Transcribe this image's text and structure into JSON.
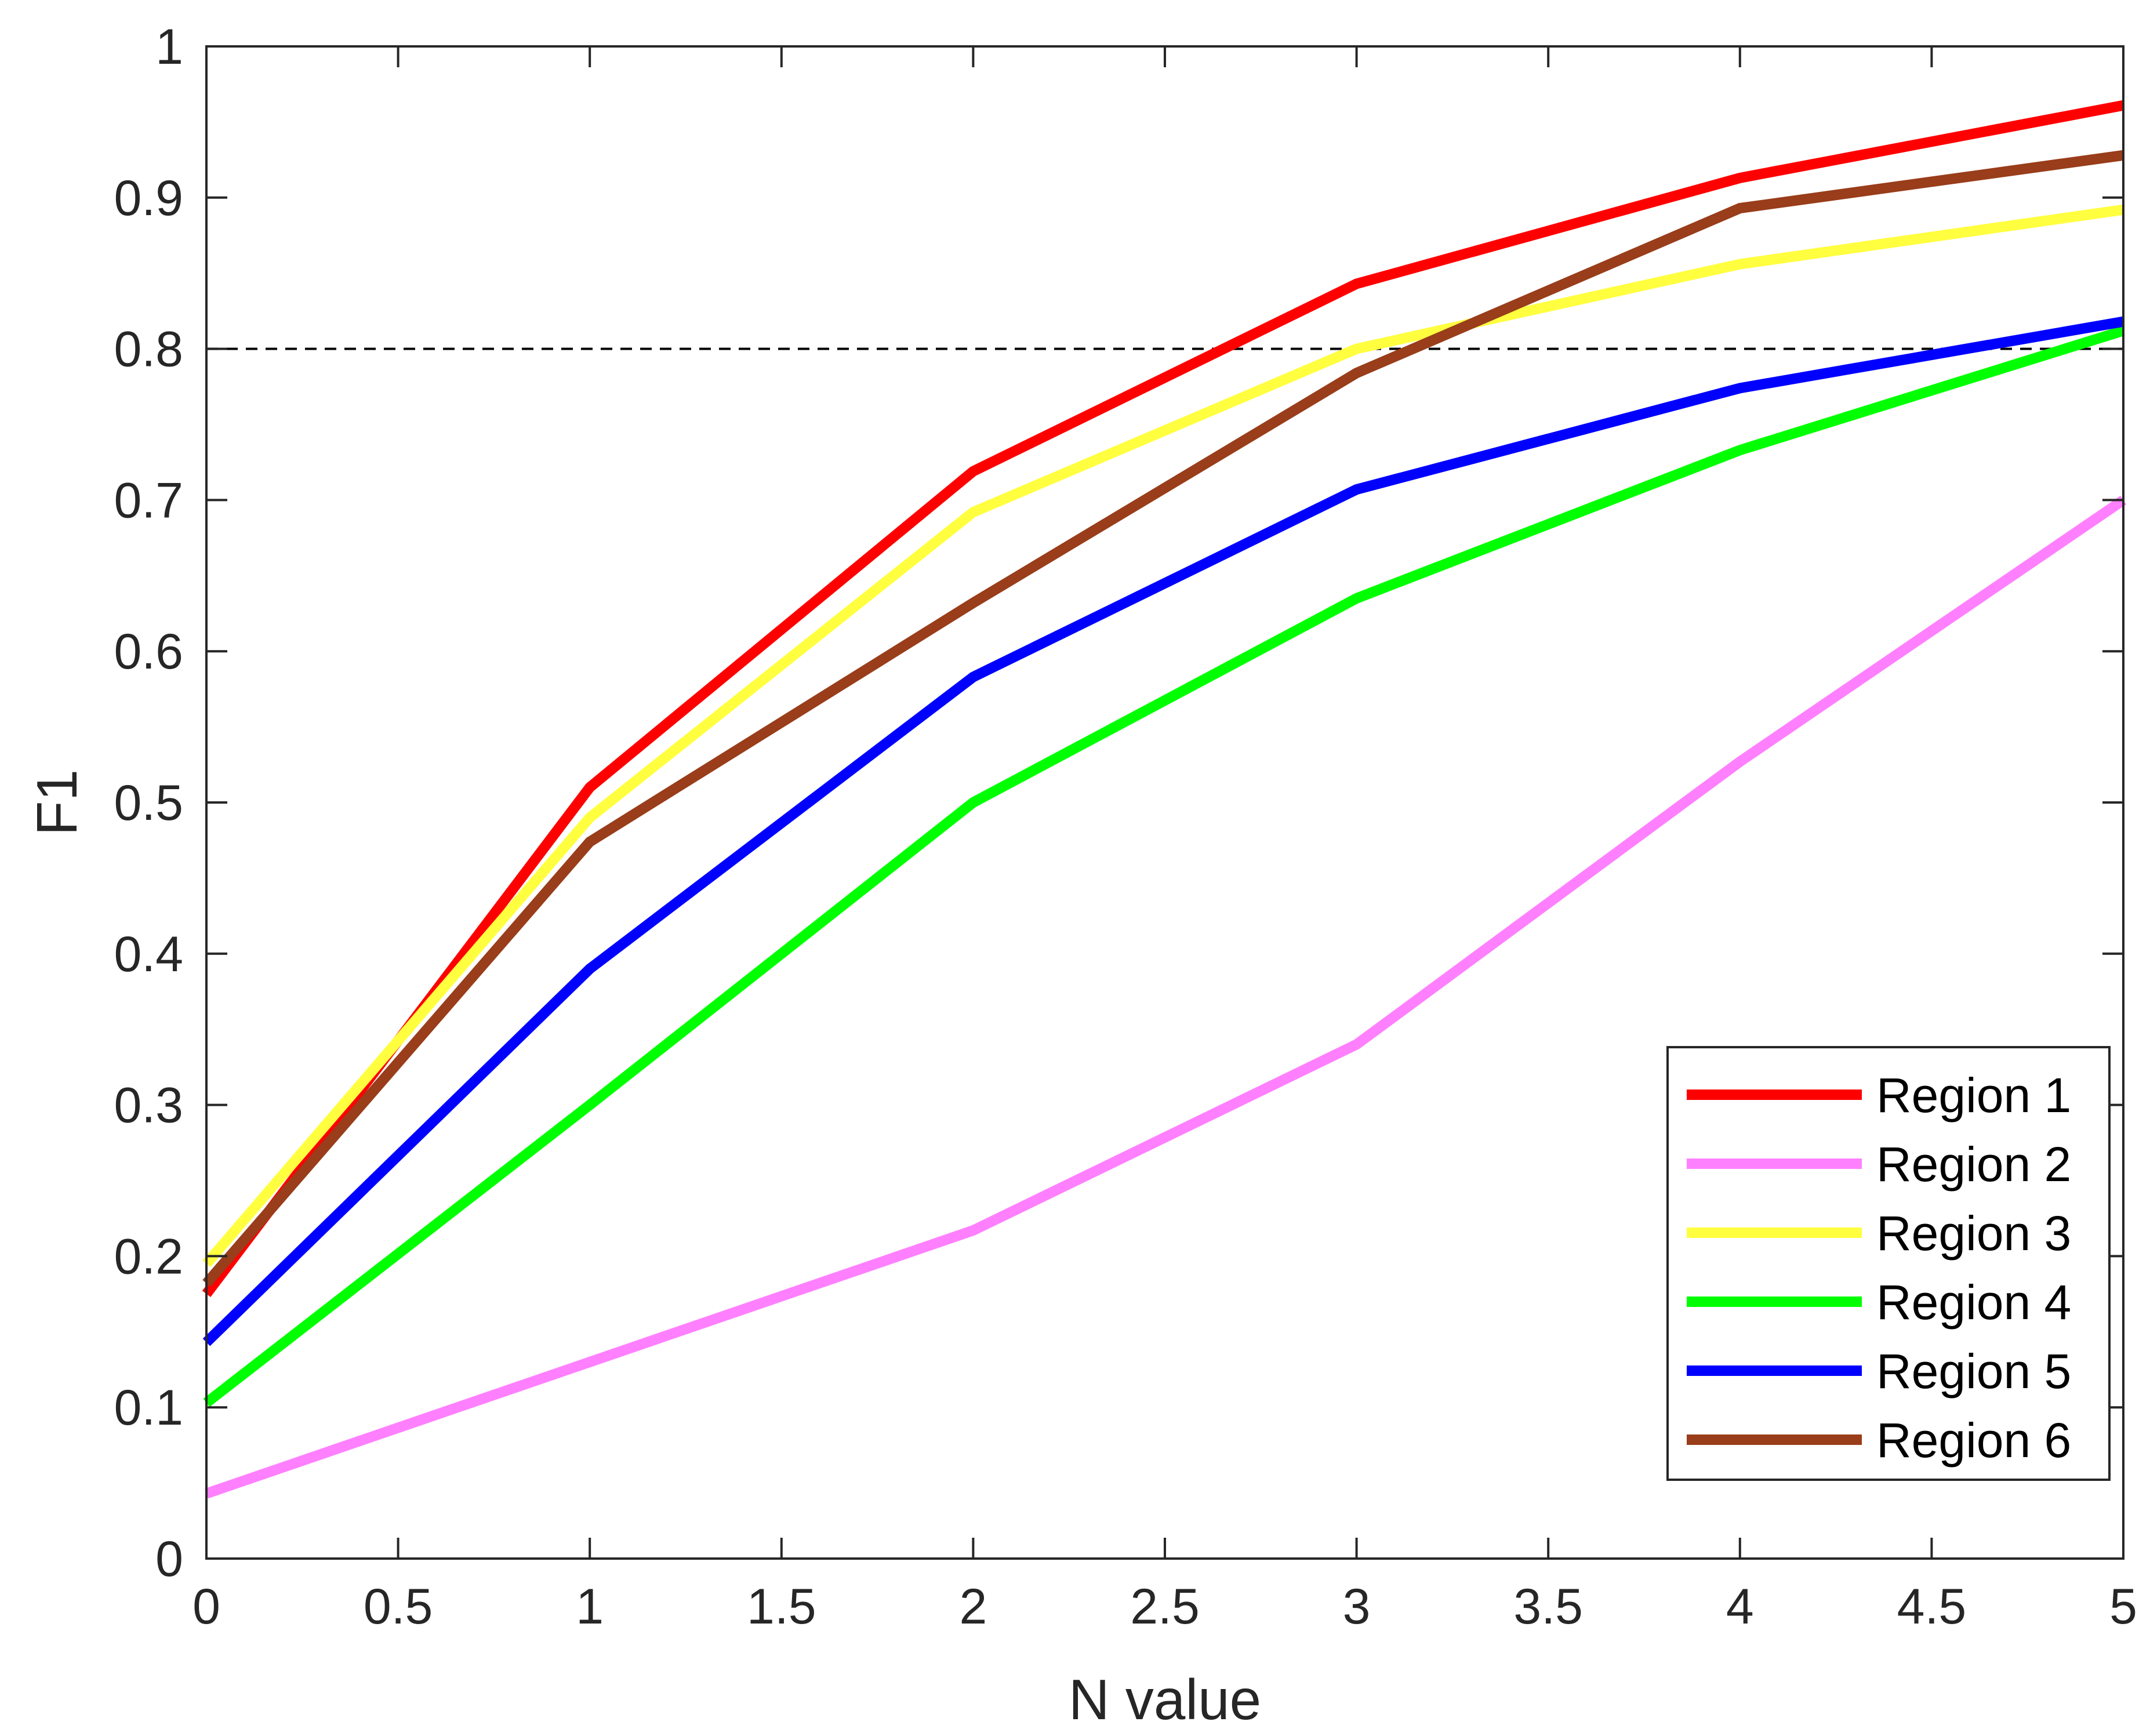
{
  "chart_data": {
    "type": "line",
    "title": "",
    "xlabel": "N value",
    "ylabel": "F1",
    "xlim": [
      0,
      5
    ],
    "ylim": [
      0,
      1
    ],
    "x": [
      0,
      1,
      2,
      3,
      4,
      5
    ],
    "xticks": [
      0,
      0.5,
      1,
      1.5,
      2,
      2.5,
      3,
      3.5,
      4,
      4.5,
      5
    ],
    "xtick_labels": [
      "0",
      "0.5",
      "1",
      "1.5",
      "2",
      "2.5",
      "3",
      "3.5",
      "4",
      "4.5",
      "5"
    ],
    "yticks": [
      0,
      0.1,
      0.2,
      0.3,
      0.4,
      0.5,
      0.6,
      0.7,
      0.8,
      0.9,
      1
    ],
    "ytick_labels": [
      "0",
      "0.1",
      "0.2",
      "0.3",
      "0.4",
      "0.5",
      "0.6",
      "0.7",
      "0.8",
      "0.9",
      "1"
    ],
    "grid": false,
    "reference_line": {
      "y": 0.8,
      "style": "dashed",
      "color": "#000000"
    },
    "legend_position": "bottom-right",
    "series": [
      {
        "name": "Region 1",
        "color": "#ff0000",
        "values": [
          0.175,
          0.51,
          0.719,
          0.843,
          0.913,
          0.961
        ]
      },
      {
        "name": "Region 2",
        "color": "#ff80ff",
        "values": [
          0.043,
          0.13,
          0.217,
          0.34,
          0.527,
          0.7
        ]
      },
      {
        "name": "Region 3",
        "color": "#ffff40",
        "values": [
          0.195,
          0.49,
          0.692,
          0.8,
          0.856,
          0.892
        ]
      },
      {
        "name": "Region 4",
        "color": "#00ff00",
        "values": [
          0.103,
          0.3,
          0.5,
          0.635,
          0.733,
          0.812
        ]
      },
      {
        "name": "Region 5",
        "color": "#0000ff",
        "values": [
          0.143,
          0.39,
          0.583,
          0.707,
          0.774,
          0.818
        ]
      },
      {
        "name": "Region 6",
        "color": "#993d1a",
        "values": [
          0.182,
          0.474,
          0.632,
          0.784,
          0.893,
          0.928
        ]
      }
    ]
  }
}
